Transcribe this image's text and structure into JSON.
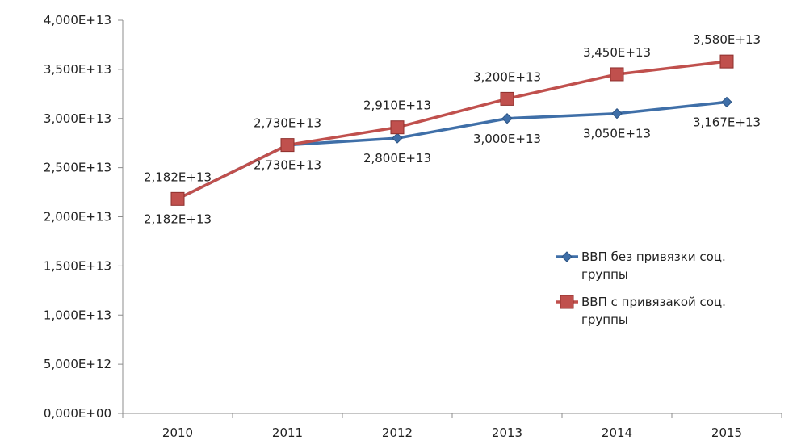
{
  "chart_data": {
    "type": "line",
    "title": "",
    "xlabel": "",
    "ylabel": "",
    "categories": [
      "2010",
      "2011",
      "2012",
      "2013",
      "2014",
      "2015"
    ],
    "ylim": [
      0,
      40000000000000
    ],
    "yticks": [
      0,
      5000000000000,
      10000000000000,
      15000000000000,
      20000000000000,
      25000000000000,
      30000000000000,
      35000000000000,
      40000000000000
    ],
    "ytick_labels": [
      "0,000E+00",
      "5,000E+12",
      "1,000E+13",
      "1,500E+13",
      "2,000E+13",
      "2,500E+13",
      "3,000E+13",
      "3,500E+13",
      "4,000E+13"
    ],
    "grid": false,
    "legend_position": "right",
    "series": [
      {
        "name": "ВВП без привязки соц. группы",
        "legend_lines": [
          "ВВП без привязки соц.",
          "группы"
        ],
        "values": [
          21820000000000,
          27300000000000,
          28000000000000,
          30000000000000,
          30500000000000,
          31670000000000
        ],
        "labels": [
          "2,182E+13",
          "2,730E+13",
          "2,800E+13",
          "3,000E+13",
          "3,050E+13",
          "3,167E+13"
        ],
        "color": "#3f6fa8",
        "marker": "diamond",
        "label_side": "below"
      },
      {
        "name": "ВВП с привязакой соц. группы",
        "legend_lines": [
          "ВВП с привязакой соц.",
          "группы"
        ],
        "values": [
          21820000000000,
          27300000000000,
          29100000000000,
          32000000000000,
          34500000000000,
          35800000000000
        ],
        "labels": [
          "2,182E+13",
          "2,730E+13",
          "2,910E+13",
          "3,200E+13",
          "3,450E+13",
          "3,580E+13"
        ],
        "color": "#c0504d",
        "marker": "square",
        "label_side": "above"
      }
    ]
  }
}
